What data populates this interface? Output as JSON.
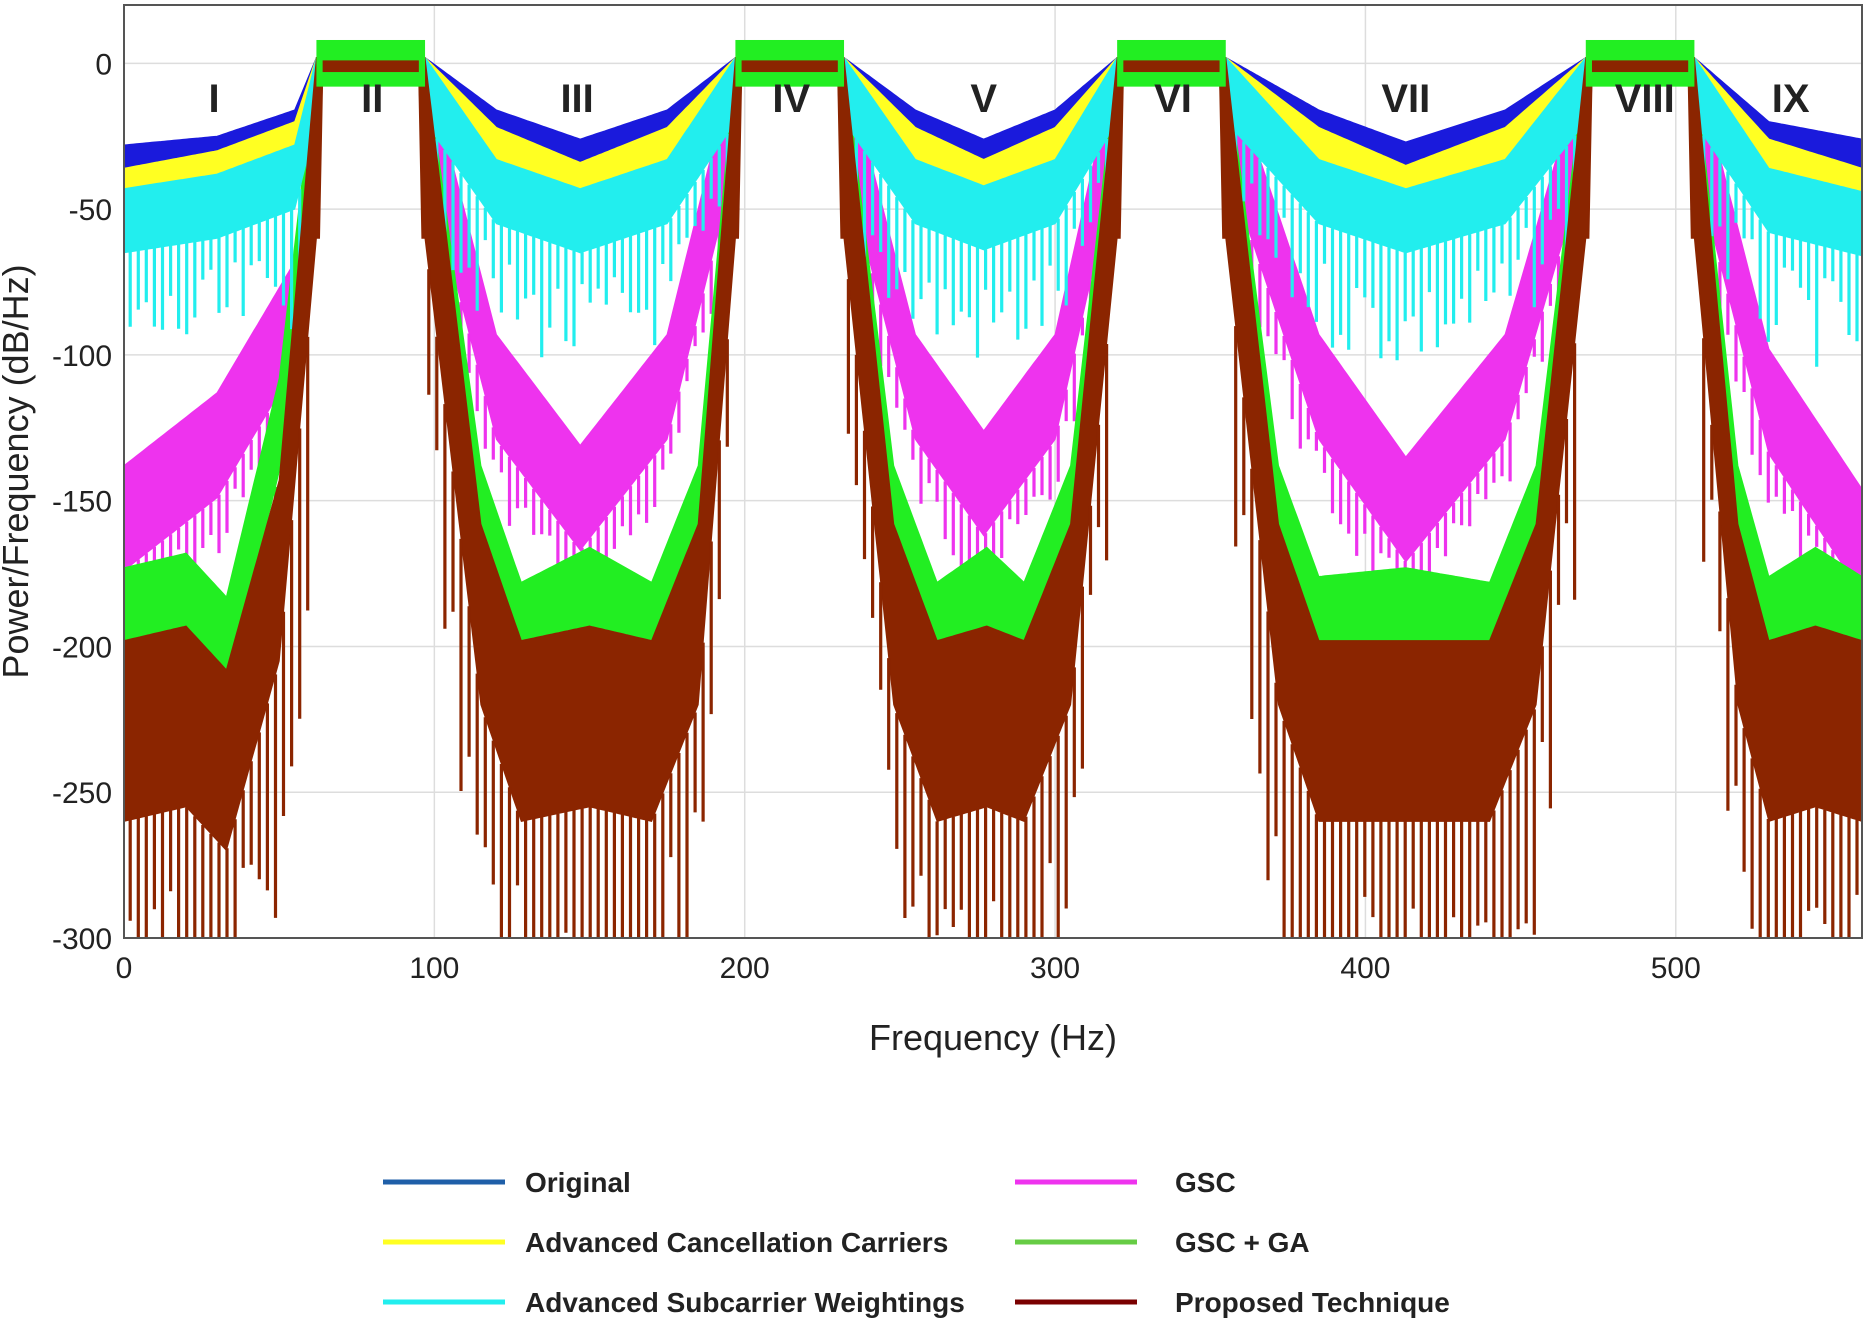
{
  "chart_data": {
    "type": "line",
    "title": "",
    "xlabel": "Frequency (Hz)",
    "ylabel": "Power/Frequency (dB/Hz)",
    "xlim": [
      0,
      560
    ],
    "ylim": [
      -300,
      20
    ],
    "grid": true,
    "x_ticks": [
      0,
      100,
      200,
      300,
      400,
      500
    ],
    "y_ticks": [
      0,
      -50,
      -100,
      -150,
      -200,
      -250,
      -300
    ],
    "regions": [
      {
        "label": "I",
        "x": 29
      },
      {
        "label": "II",
        "x": 80
      },
      {
        "label": "III",
        "x": 146
      },
      {
        "label": "IV",
        "x": 215
      },
      {
        "label": "V",
        "x": 277
      },
      {
        "label": "VI",
        "x": 338
      },
      {
        "label": "VII",
        "x": 413
      },
      {
        "label": "VIII",
        "x": 490
      },
      {
        "label": "IX",
        "x": 537
      }
    ],
    "bands": [
      {
        "start": 62,
        "end": 97
      },
      {
        "start": 197,
        "end": 232
      },
      {
        "start": 320,
        "end": 355
      },
      {
        "start": 471,
        "end": 506
      }
    ],
    "series": [
      {
        "name": "Original",
        "color": "#1a1adc",
        "legend_color": "#1f5fa8",
        "x": [
          0,
          30,
          55,
          62,
          97,
          120,
          147,
          175,
          197,
          232,
          255,
          277,
          300,
          320,
          355,
          385,
          413,
          445,
          471,
          506,
          530,
          560
        ],
        "y": [
          -30,
          -27,
          -18,
          0,
          0,
          -18,
          -28,
          -18,
          0,
          0,
          -18,
          -28,
          -18,
          0,
          0,
          -18,
          -29,
          -18,
          0,
          0,
          -22,
          -28
        ]
      },
      {
        "name": "GSC",
        "color": "#ee33ee",
        "legend_color": "#ee33ee",
        "x": [
          0,
          30,
          55,
          62,
          97,
          120,
          147,
          175,
          197,
          232,
          255,
          277,
          300,
          320,
          355,
          385,
          413,
          445,
          471,
          506,
          530,
          560
        ],
        "y": [
          -140,
          -115,
          -70,
          0,
          0,
          -95,
          -133,
          -95,
          0,
          0,
          -95,
          -128,
          -95,
          0,
          0,
          -95,
          -137,
          -95,
          0,
          0,
          -100,
          -148
        ]
      },
      {
        "name": "Advanced Cancellation Carriers",
        "color": "#ffff22",
        "legend_color": "#ffff22",
        "x": [
          0,
          30,
          55,
          62,
          97,
          120,
          147,
          175,
          197,
          232,
          255,
          277,
          300,
          320,
          355,
          385,
          413,
          445,
          471,
          506,
          530,
          560
        ],
        "y": [
          -38,
          -32,
          -22,
          0,
          0,
          -24,
          -36,
          -24,
          0,
          0,
          -24,
          -35,
          -24,
          0,
          0,
          -24,
          -37,
          -24,
          0,
          0,
          -28,
          -38
        ]
      },
      {
        "name": "GSC + GA",
        "color": "#22ee22",
        "legend_color": "#66cc44",
        "x": [
          0,
          20,
          33,
          50,
          62,
          97,
          115,
          128,
          150,
          170,
          185,
          197,
          232,
          248,
          262,
          278,
          290,
          305,
          320,
          355,
          372,
          385,
          413,
          440,
          455,
          471,
          506,
          520,
          530,
          545,
          560
        ],
        "y": [
          -175,
          -170,
          -185,
          -110,
          0,
          0,
          -140,
          -180,
          -168,
          -180,
          -140,
          0,
          0,
          -140,
          -180,
          -168,
          -180,
          -140,
          0,
          0,
          -140,
          -178,
          -175,
          -180,
          -140,
          0,
          0,
          -140,
          -178,
          -168,
          -178
        ]
      },
      {
        "name": "Advanced Subcarrier Weightings",
        "color": "#22eeee",
        "legend_color": "#22eeee",
        "x": [
          0,
          30,
          55,
          62,
          97,
          120,
          147,
          175,
          197,
          232,
          255,
          277,
          300,
          320,
          355,
          385,
          413,
          445,
          471,
          506,
          530,
          560
        ],
        "y": [
          -45,
          -40,
          -30,
          0,
          0,
          -35,
          -45,
          -35,
          0,
          0,
          -35,
          -44,
          -35,
          0,
          0,
          -35,
          -45,
          -35,
          0,
          0,
          -38,
          -46
        ]
      },
      {
        "name": "Proposed Technique",
        "color": "#8b2500",
        "legend_color": "#7a0000",
        "x": [
          0,
          20,
          33,
          50,
          62,
          97,
          115,
          128,
          150,
          170,
          185,
          197,
          232,
          248,
          262,
          278,
          290,
          305,
          320,
          355,
          372,
          385,
          413,
          440,
          455,
          471,
          506,
          520,
          530,
          545,
          560
        ],
        "y": [
          -200,
          -195,
          -210,
          -145,
          0,
          0,
          -160,
          -200,
          -195,
          -200,
          -160,
          0,
          0,
          -160,
          -200,
          -195,
          -200,
          -160,
          0,
          0,
          -160,
          -200,
          -200,
          -200,
          -160,
          0,
          0,
          -160,
          -200,
          -195,
          -200
        ]
      }
    ]
  }
}
